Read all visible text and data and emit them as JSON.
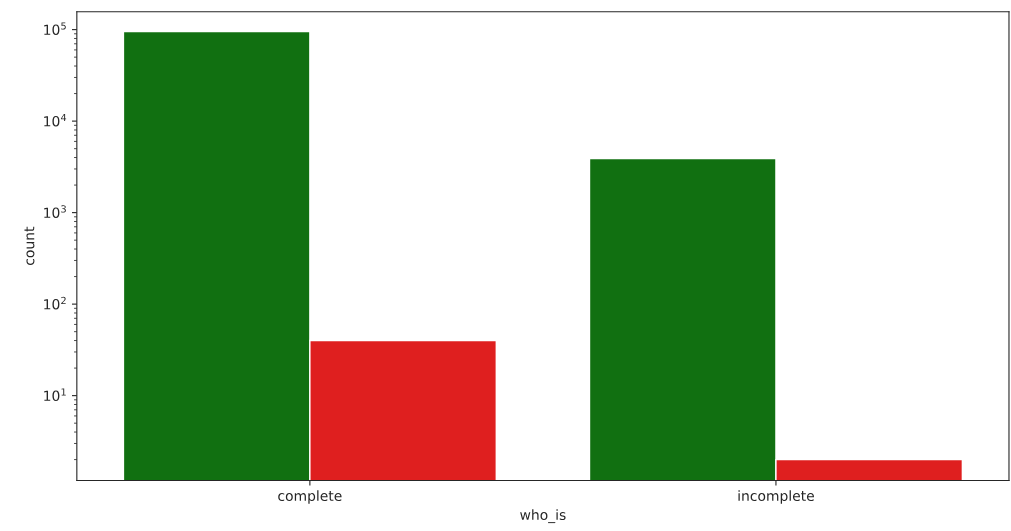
{
  "chart_data": {
    "type": "bar",
    "xlabel": "who_is",
    "ylabel": "count",
    "categories": [
      "complete",
      "incomplete"
    ],
    "series": [
      {
        "color": "#117011",
        "values": [
          95000,
          3900
        ]
      },
      {
        "color": "#df1f1f",
        "values": [
          40,
          2
        ]
      }
    ],
    "log": "y",
    "ylim": [
      1.18,
      157000
    ],
    "yticks": [
      {
        "value": 10,
        "label": "10$^{1}$"
      },
      {
        "value": 100,
        "label": "10$^{2}$"
      },
      {
        "value": 1000,
        "label": "10$^{3}$"
      },
      {
        "value": 10000,
        "label": "10$^{4}$"
      },
      {
        "value": 100000,
        "label": "10$^{5}$"
      }
    ],
    "grid": false,
    "legend": false
  }
}
